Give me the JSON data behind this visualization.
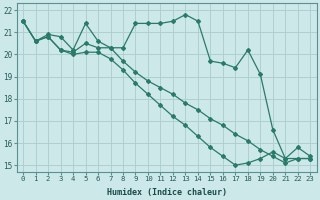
{
  "xlabel": "Humidex (Indice chaleur)",
  "xlim": [
    -0.5,
    23.5
  ],
  "ylim": [
    14.7,
    22.3
  ],
  "yticks": [
    15,
    16,
    17,
    18,
    19,
    20,
    21,
    22
  ],
  "xticks": [
    0,
    1,
    2,
    3,
    4,
    5,
    6,
    7,
    8,
    9,
    10,
    11,
    12,
    13,
    14,
    15,
    16,
    17,
    18,
    19,
    20,
    21,
    22,
    23
  ],
  "background_color": "#cce8e8",
  "grid_color": "#b0cfcf",
  "line_color": "#2a7a6a",
  "lines": [
    [
      21.5,
      20.6,
      20.9,
      20.8,
      20.2,
      21.4,
      20.6,
      20.3,
      20.3,
      21.4,
      21.4,
      21.4,
      21.5,
      21.8,
      21.5,
      19.7,
      19.6,
      19.4,
      20.2,
      19.1,
      16.6,
      15.3,
      15.8,
      15.4
    ],
    [
      21.5,
      20.6,
      20.8,
      20.2,
      20.1,
      20.5,
      20.3,
      20.3,
      19.7,
      19.2,
      18.8,
      18.5,
      18.2,
      17.8,
      17.5,
      17.1,
      16.8,
      16.4,
      16.1,
      15.7,
      15.4,
      15.1,
      15.3,
      15.3
    ],
    [
      21.5,
      20.6,
      20.8,
      20.2,
      20.0,
      20.1,
      20.1,
      19.8,
      19.3,
      18.7,
      18.2,
      17.7,
      17.2,
      16.8,
      16.3,
      15.8,
      15.4,
      15.0,
      15.1,
      15.3,
      15.6,
      15.3,
      15.3,
      15.3
    ]
  ]
}
